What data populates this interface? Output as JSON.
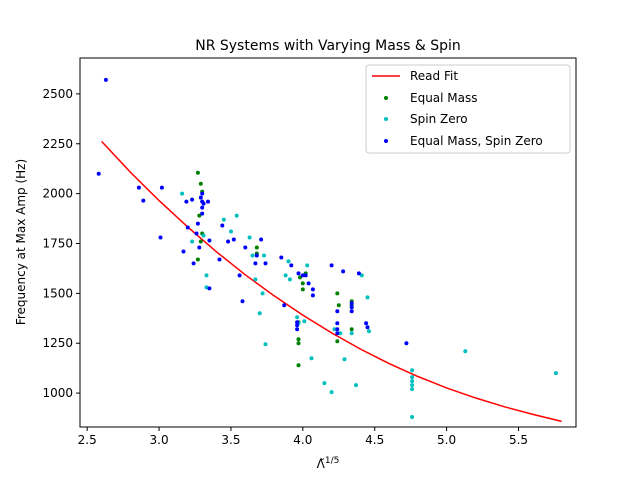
{
  "chart_data": {
    "type": "scatter",
    "title": "NR Systems with Varying Mass & Spin",
    "xlabel": "Λ̃",
    "xlabel_sup": "1/5",
    "ylabel": "Frequency at Max Amp (Hz)",
    "xlim": [
      2.45,
      5.9
    ],
    "ylim": [
      830,
      2680
    ],
    "xticks": [
      2.5,
      3.0,
      3.5,
      4.0,
      4.5,
      5.0,
      5.5
    ],
    "xtick_labels": [
      "2.5",
      "3.0",
      "3.5",
      "4.0",
      "4.5",
      "5.0",
      "5.5"
    ],
    "yticks": [
      1000,
      1250,
      1500,
      1750,
      2000,
      2250,
      2500
    ],
    "ytick_labels": [
      "1000",
      "1250",
      "1500",
      "1750",
      "2000",
      "2250",
      "2500"
    ],
    "grid": false,
    "legend_position": "top-right",
    "colors": {
      "fit": "#ff0000",
      "equal_mass": "#008000",
      "spin_zero": "#00bfbf",
      "equal_mass_spin_zero": "#0000ff"
    },
    "fit": {
      "name": "Read Fit",
      "x": [
        2.6,
        2.8,
        3.0,
        3.2,
        3.4,
        3.6,
        3.8,
        4.0,
        4.2,
        4.4,
        4.6,
        4.8,
        5.0,
        5.2,
        5.4,
        5.6,
        5.8
      ],
      "y": [
        2262,
        2108,
        1965,
        1832,
        1708,
        1593,
        1488,
        1391,
        1302,
        1221,
        1148,
        1083,
        1026,
        976,
        932,
        893,
        858
      ]
    },
    "series": [
      {
        "name": "Equal Mass",
        "color": "#008000",
        "points": [
          [
            3.27,
            2105
          ],
          [
            3.29,
            2050
          ],
          [
            3.3,
            2010
          ],
          [
            3.28,
            1890
          ],
          [
            3.3,
            1800
          ],
          [
            3.29,
            1760
          ],
          [
            3.27,
            1670
          ],
          [
            3.68,
            1730
          ],
          [
            3.68,
            1700
          ],
          [
            3.97,
            1140
          ],
          [
            3.97,
            1270
          ],
          [
            3.97,
            1250
          ],
          [
            3.97,
            1355
          ],
          [
            3.98,
            1580
          ],
          [
            4.0,
            1550
          ],
          [
            4.0,
            1520
          ],
          [
            4.02,
            1600
          ],
          [
            4.24,
            1500
          ],
          [
            4.25,
            1440
          ],
          [
            4.24,
            1260
          ],
          [
            4.34,
            1320
          ],
          [
            4.34,
            1440
          ],
          [
            4.34,
            1460
          ]
        ]
      },
      {
        "name": "Spin Zero",
        "color": "#00bfbf",
        "points": [
          [
            3.16,
            2000
          ],
          [
            3.23,
            1760
          ],
          [
            3.31,
            1790
          ],
          [
            3.33,
            1590
          ],
          [
            3.33,
            1530
          ],
          [
            3.45,
            1870
          ],
          [
            3.5,
            1810
          ],
          [
            3.54,
            1890
          ],
          [
            3.63,
            1780
          ],
          [
            3.65,
            1690
          ],
          [
            3.67,
            1570
          ],
          [
            3.7,
            1400
          ],
          [
            3.72,
            1500
          ],
          [
            3.73,
            1690
          ],
          [
            3.74,
            1245
          ],
          [
            3.88,
            1590
          ],
          [
            3.9,
            1660
          ],
          [
            3.91,
            1570
          ],
          [
            3.96,
            1380
          ],
          [
            3.97,
            1350
          ],
          [
            4.01,
            1360
          ],
          [
            4.03,
            1640
          ],
          [
            4.06,
            1175
          ],
          [
            4.15,
            1050
          ],
          [
            4.2,
            1005
          ],
          [
            4.22,
            1320
          ],
          [
            4.26,
            1300
          ],
          [
            4.29,
            1170
          ],
          [
            4.34,
            1300
          ],
          [
            4.37,
            1040
          ],
          [
            4.41,
            1590
          ],
          [
            4.45,
            1480
          ],
          [
            4.46,
            1310
          ],
          [
            4.76,
            1115
          ],
          [
            4.76,
            1080
          ],
          [
            4.76,
            1060
          ],
          [
            4.76,
            1040
          ],
          [
            4.76,
            1020
          ],
          [
            4.76,
            880
          ],
          [
            5.13,
            1210
          ],
          [
            5.76,
            1100
          ]
        ]
      },
      {
        "name": "Equal Mass, Spin Zero",
        "color": "#0000ff",
        "points": [
          [
            2.58,
            2100
          ],
          [
            2.63,
            2570
          ],
          [
            2.86,
            2030
          ],
          [
            2.89,
            1965
          ],
          [
            3.01,
            1780
          ],
          [
            3.02,
            2030
          ],
          [
            3.17,
            1710
          ],
          [
            3.19,
            1960
          ],
          [
            3.2,
            1830
          ],
          [
            3.23,
            1970
          ],
          [
            3.24,
            1650
          ],
          [
            3.26,
            1800
          ],
          [
            3.27,
            1850
          ],
          [
            3.28,
            1730
          ],
          [
            3.29,
            1980
          ],
          [
            3.3,
            2000
          ],
          [
            3.3,
            1960
          ],
          [
            3.3,
            1930
          ],
          [
            3.3,
            1900
          ],
          [
            3.31,
            1950
          ],
          [
            3.34,
            1960
          ],
          [
            3.35,
            1765
          ],
          [
            3.35,
            1525
          ],
          [
            3.42,
            1670
          ],
          [
            3.44,
            1840
          ],
          [
            3.48,
            1760
          ],
          [
            3.52,
            1770
          ],
          [
            3.56,
            1590
          ],
          [
            3.58,
            1460
          ],
          [
            3.6,
            1730
          ],
          [
            3.67,
            1650
          ],
          [
            3.68,
            1690
          ],
          [
            3.71,
            1770
          ],
          [
            3.74,
            1650
          ],
          [
            3.85,
            1680
          ],
          [
            3.87,
            1440
          ],
          [
            3.92,
            1640
          ],
          [
            3.96,
            1355
          ],
          [
            3.96,
            1340
          ],
          [
            3.96,
            1320
          ],
          [
            3.97,
            1600
          ],
          [
            4.0,
            1590
          ],
          [
            4.02,
            1590
          ],
          [
            4.04,
            1550
          ],
          [
            4.07,
            1520
          ],
          [
            4.07,
            1490
          ],
          [
            4.2,
            1640
          ],
          [
            4.24,
            1410
          ],
          [
            4.24,
            1350
          ],
          [
            4.24,
            1320
          ],
          [
            4.24,
            1300
          ],
          [
            4.28,
            1610
          ],
          [
            4.34,
            1450
          ],
          [
            4.34,
            1430
          ],
          [
            4.34,
            1410
          ],
          [
            4.39,
            1600
          ],
          [
            4.44,
            1350
          ],
          [
            4.45,
            1330
          ],
          [
            4.72,
            1250
          ]
        ]
      }
    ]
  }
}
